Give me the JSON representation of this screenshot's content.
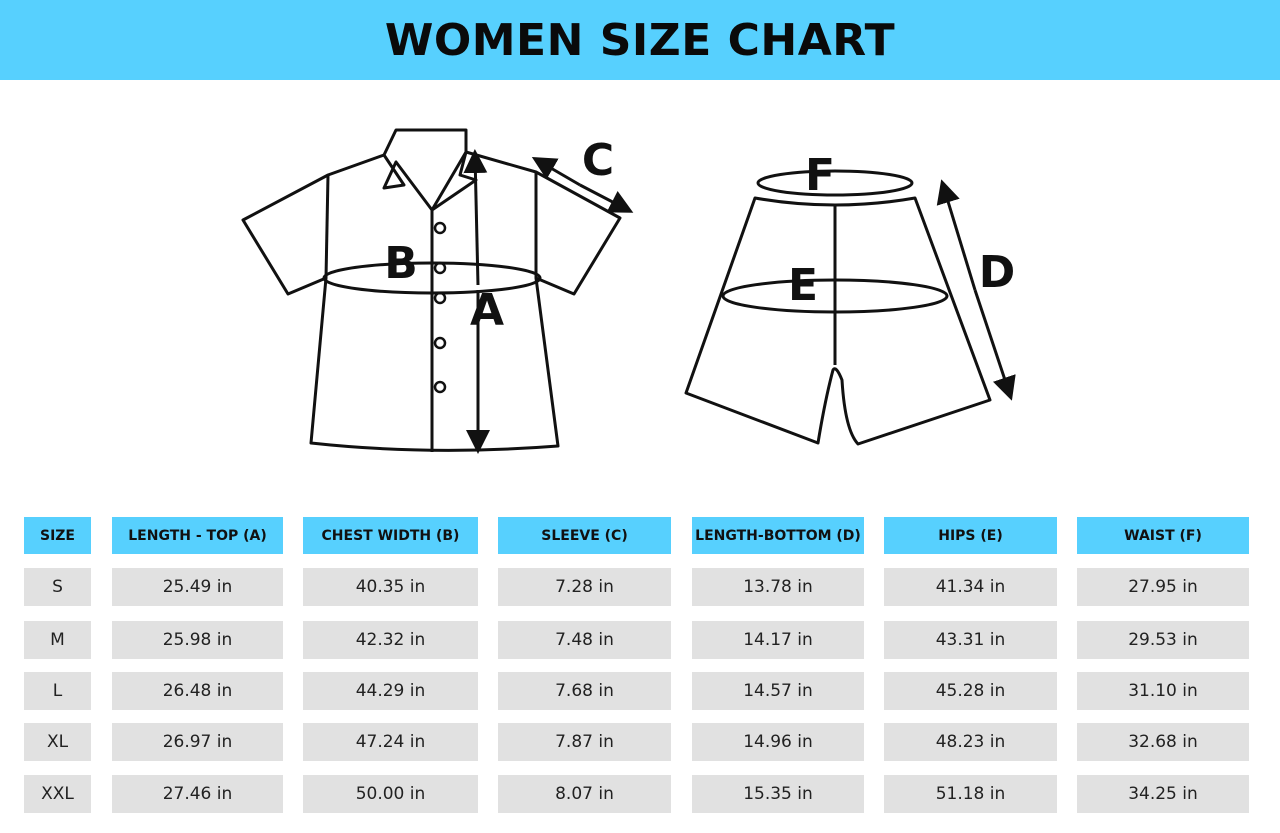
{
  "title": "WOMEN SIZE CHART",
  "colors": {
    "accent": "#57d0fe",
    "cell_bg": "#e1e1e1"
  },
  "diagram_labels": {
    "a": "A",
    "b": "B",
    "c": "C",
    "d": "D",
    "e": "E",
    "f": "F"
  },
  "table": {
    "headers": [
      "SIZE",
      "LENGTH - TOP (A)",
      "CHEST WIDTH (B)",
      "SLEEVE (C)",
      "LENGTH-BOTTOM (D)",
      "HIPS (E)",
      "WAIST (F)"
    ],
    "rows": [
      [
        "S",
        "25.49 in",
        "40.35 in",
        "7.28 in",
        "13.78 in",
        "41.34 in",
        "27.95 in"
      ],
      [
        "M",
        "25.98 in",
        "42.32 in",
        "7.48 in",
        "14.17 in",
        "43.31 in",
        "29.53 in"
      ],
      [
        "L",
        "26.48 in",
        "44.29 in",
        "7.68 in",
        "14.57 in",
        "45.28 in",
        "31.10 in"
      ],
      [
        "XL",
        "26.97 in",
        "47.24 in",
        "7.87 in",
        "14.96 in",
        "48.23 in",
        "32.68 in"
      ],
      [
        "XXL",
        "27.46 in",
        "50.00 in",
        "8.07 in",
        "15.35 in",
        "51.18 in",
        "34.25 in"
      ]
    ]
  }
}
